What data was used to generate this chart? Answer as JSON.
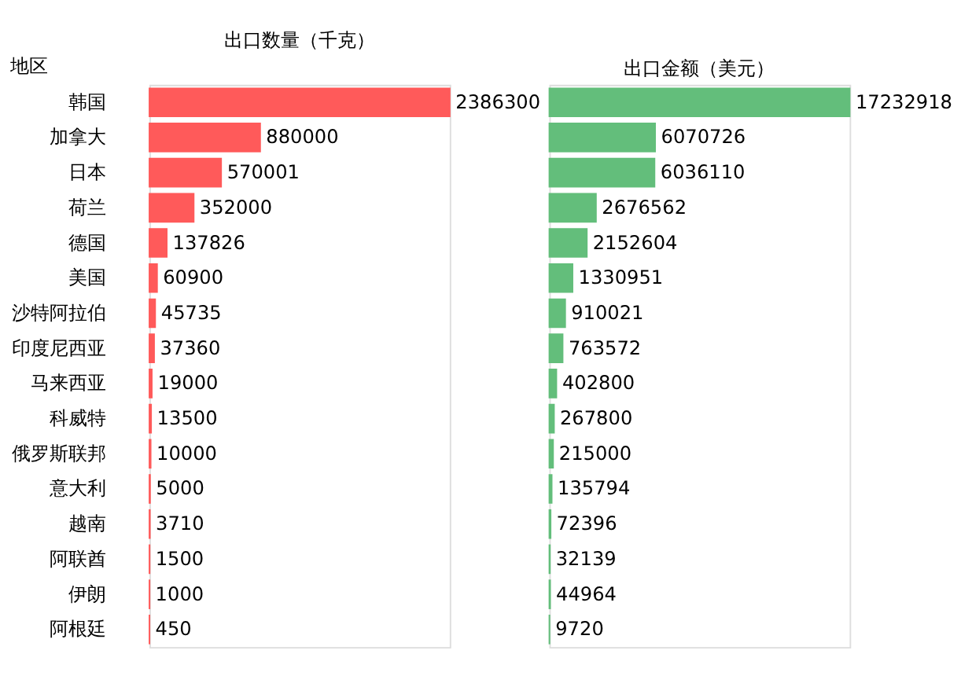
{
  "chart_data": [
    {
      "type": "bar",
      "orientation": "horizontal",
      "title": "出口数量（千克）",
      "ylabel": "地区",
      "categories": [
        "韩国",
        "加拿大",
        "日本",
        "荷兰",
        "德国",
        "美国",
        "沙特阿拉伯",
        "印度尼西亚",
        "马来西亚",
        "科威特",
        "俄罗斯联邦",
        "意大利",
        "越南",
        "阿联酋",
        "伊朗",
        "阿根廷"
      ],
      "values": [
        2386300,
        880000,
        570001,
        352000,
        137826,
        60900,
        45735,
        37360,
        19000,
        13500,
        10000,
        5000,
        3710,
        1500,
        1000,
        450
      ],
      "color": "#ff5a5a",
      "data_labels": true,
      "tick_labels": "y",
      "grid": false
    },
    {
      "type": "bar",
      "orientation": "horizontal",
      "title": "出口金额（美元）",
      "categories": [
        null,
        null,
        null,
        null,
        null,
        null,
        null,
        null,
        null,
        null,
        null,
        null,
        null,
        null,
        null,
        null
      ],
      "values": [
        17232918,
        6070726,
        6036110,
        2676562,
        2152604,
        1330951,
        910021,
        763572,
        402800,
        267800,
        215000,
        135794,
        72396,
        32139,
        44964,
        9720
      ],
      "color": "#63be7b",
      "data_labels": true,
      "tick_labels": false,
      "grid": false
    }
  ]
}
